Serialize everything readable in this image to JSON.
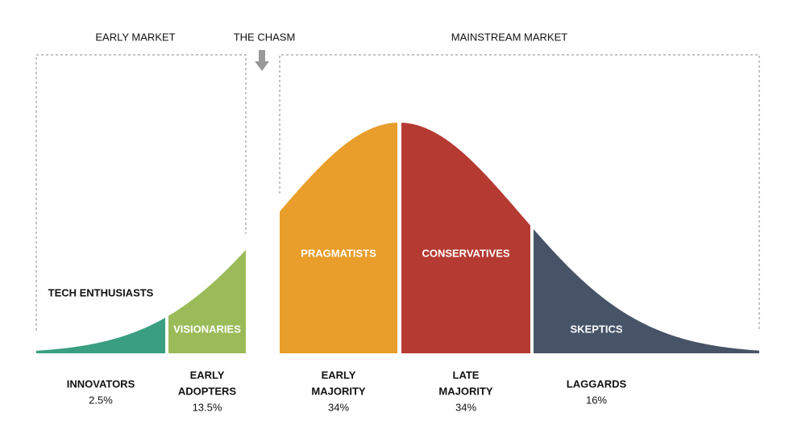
{
  "header": {
    "early_market": "EARLY MARKET",
    "chasm": "THE CHASM",
    "mainstream_market": "MAINSTREAM MARKET"
  },
  "segments": [
    {
      "name": "TECH ENTHUSIASTS",
      "group": [
        "INNOVATORS"
      ],
      "share": "2.5%",
      "color": "#3a9e82"
    },
    {
      "name": "VISIONARIES",
      "group": [
        "EARLY",
        "ADOPTERS"
      ],
      "share": "13.5%",
      "color": "#9bbb59"
    },
    {
      "name": "PRAGMATISTS",
      "group": [
        "EARLY",
        "MAJORITY"
      ],
      "share": "34%",
      "color": "#e99d2a"
    },
    {
      "name": "CONSERVATIVES",
      "group": [
        "LATE",
        "MAJORITY"
      ],
      "share": "34%",
      "color": "#b53a32"
    },
    {
      "name": "SKEPTICS",
      "group": [
        "LAGGARDS"
      ],
      "share": "16%",
      "color": "#475468"
    }
  ]
}
